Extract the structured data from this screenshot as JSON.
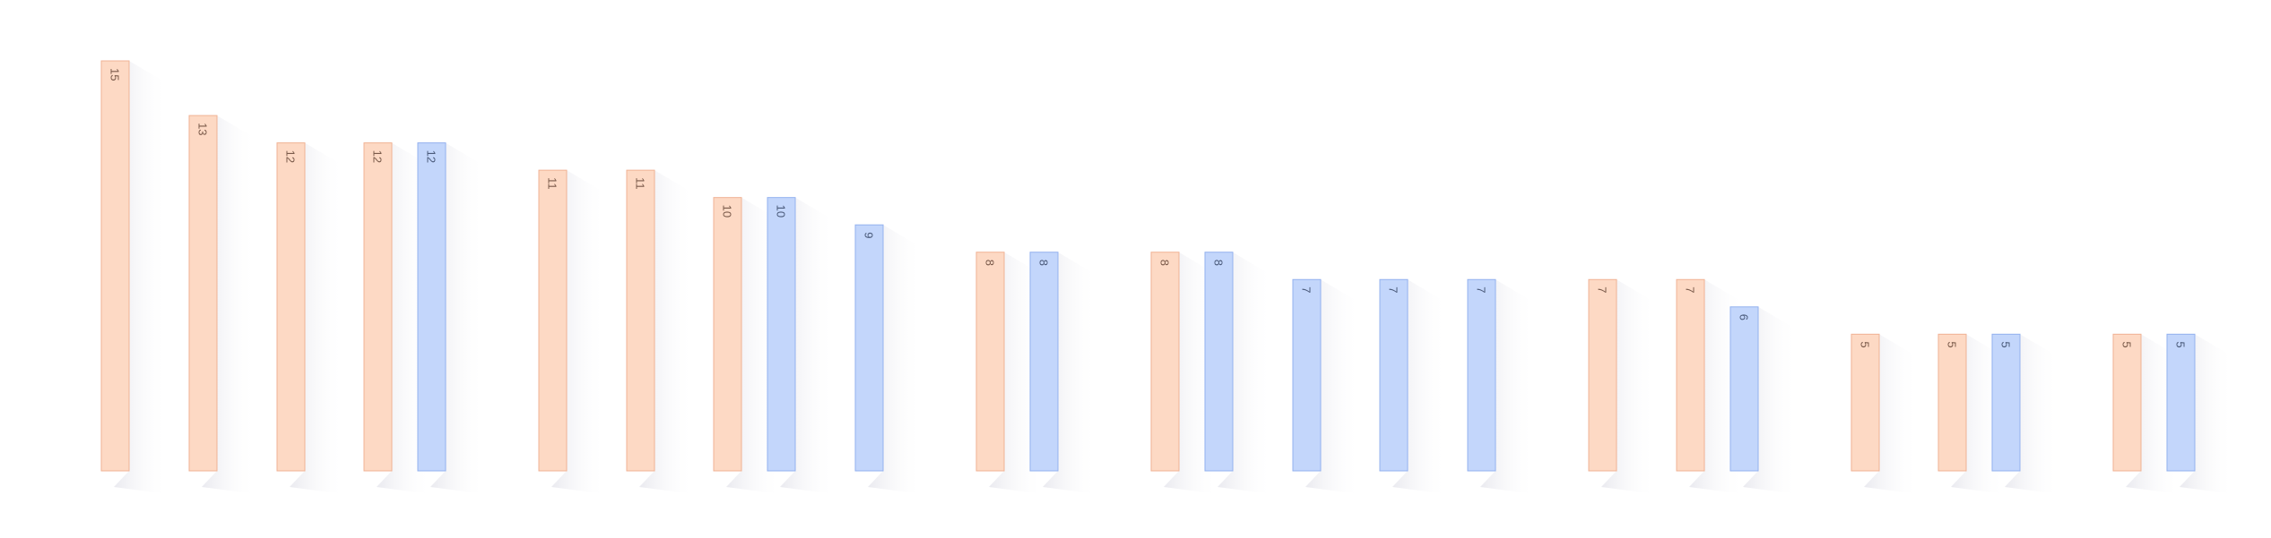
{
  "chart_data": {
    "type": "bar",
    "grid": false,
    "legend": "none",
    "ylim": [
      0,
      15
    ],
    "colors": {
      "orange_fill": "#fdd9c4",
      "orange_stroke": "#f0b294",
      "orange_text": "#7a5a4a",
      "blue_fill": "#c3d6fb",
      "blue_stroke": "#93b1ef",
      "blue_text": "#4a5a7a",
      "shadow": "#d9d9e3"
    },
    "bars": [
      {
        "value": 15,
        "label": "15",
        "color": "orange"
      },
      {
        "value": 13,
        "label": "13",
        "color": "orange"
      },
      {
        "value": 12,
        "label": "12",
        "color": "orange"
      },
      {
        "value": 12,
        "label": "12",
        "color": "orange"
      },
      {
        "value": 12,
        "label": "12",
        "color": "blue"
      },
      {
        "value": 11,
        "label": "11",
        "color": "orange"
      },
      {
        "value": 11,
        "label": "11",
        "color": "orange"
      },
      {
        "value": 10,
        "label": "10",
        "color": "orange"
      },
      {
        "value": 10,
        "label": "10",
        "color": "blue"
      },
      {
        "value": 9,
        "label": "9",
        "color": "blue"
      },
      {
        "value": 8,
        "label": "8",
        "color": "orange"
      },
      {
        "value": 8,
        "label": "8",
        "color": "blue"
      },
      {
        "value": 8,
        "label": "8",
        "color": "orange"
      },
      {
        "value": 8,
        "label": "8",
        "color": "blue"
      },
      {
        "value": 7,
        "label": "7",
        "color": "blue"
      },
      {
        "value": 7,
        "label": "7",
        "color": "blue"
      },
      {
        "value": 7,
        "label": "7",
        "color": "blue"
      },
      {
        "value": 7,
        "label": "7",
        "color": "orange"
      },
      {
        "value": 7,
        "label": "7",
        "color": "orange"
      },
      {
        "value": 6,
        "label": "6",
        "color": "blue"
      },
      {
        "value": 5,
        "label": "5",
        "color": "orange"
      },
      {
        "value": 5,
        "label": "5",
        "color": "orange"
      },
      {
        "value": 5,
        "label": "5",
        "color": "blue"
      },
      {
        "value": 5,
        "label": "5",
        "color": "orange"
      },
      {
        "value": 5,
        "label": "5",
        "color": "blue"
      }
    ]
  }
}
